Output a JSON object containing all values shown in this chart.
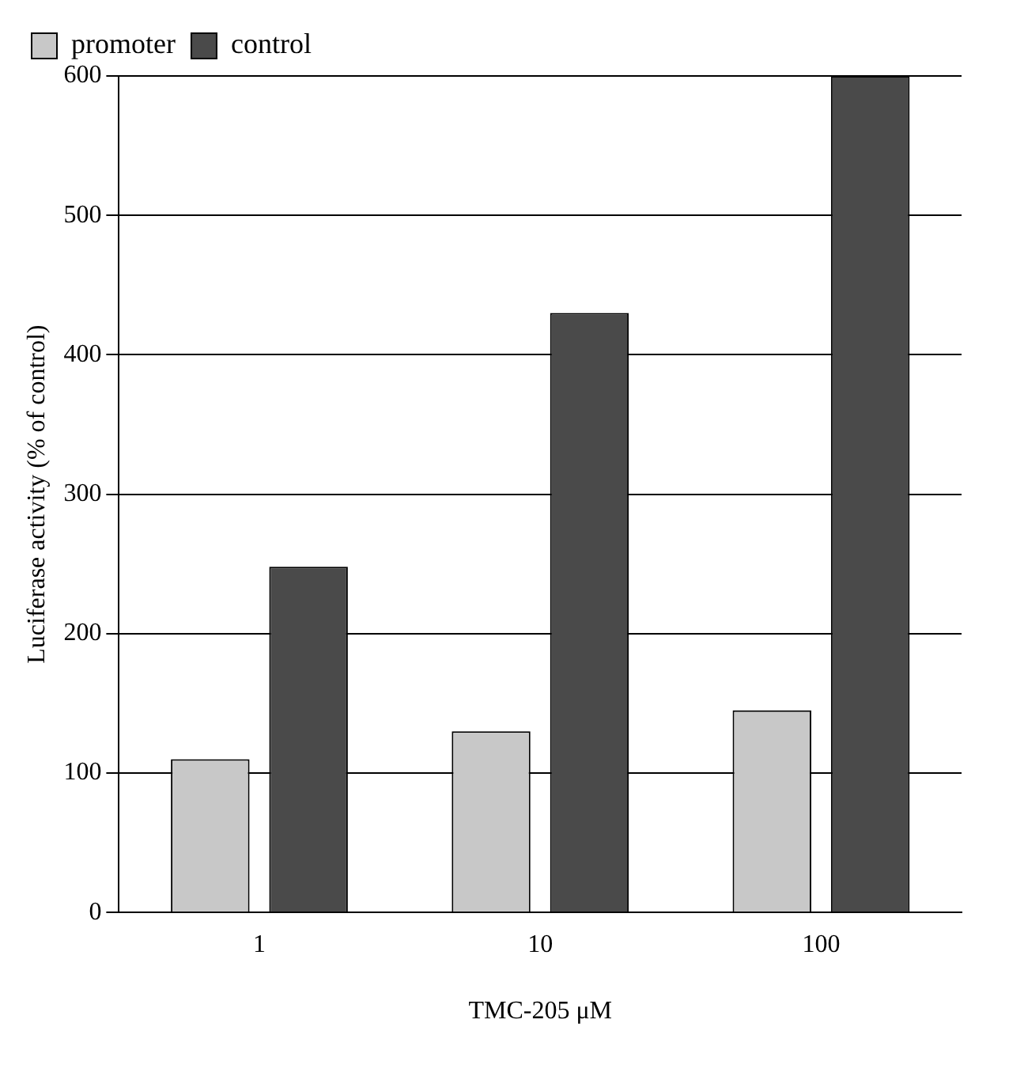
{
  "chart_data": {
    "type": "bar",
    "xlabel": "TMC-205 μM",
    "ylabel": "Luciferase activity (% of control)",
    "categories": [
      "1",
      "10",
      "100"
    ],
    "series": [
      {
        "name": "promoter",
        "color": "#c8c8c8",
        "values": [
          110,
          130,
          145
        ]
      },
      {
        "name": "control",
        "color": "#4a4a4a",
        "values": [
          248,
          430,
          600
        ]
      }
    ],
    "ylim": [
      0,
      600
    ],
    "yticks": [
      0,
      100,
      200,
      300,
      400,
      500,
      600
    ],
    "grid": "y",
    "legend": "top"
  }
}
